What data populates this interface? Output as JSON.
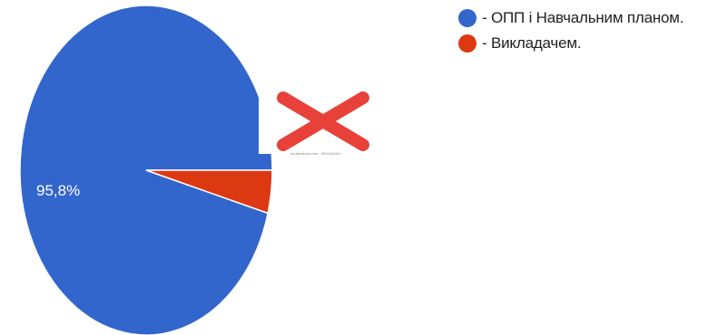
{
  "chart_data": {
    "type": "pie",
    "slices": [
      {
        "name": "- ОПП і Навчальним планом.",
        "value": 95.8,
        "color": "#3366cc"
      },
      {
        "name": "- Викладачем.",
        "value": 4.2,
        "color": "#dc3912"
      }
    ],
    "data_labels": [
      "95,8%",
      ""
    ],
    "legend_position": "top-right"
  },
  "overlay": {
    "icon": "red-x-icon",
    "color": "#e8413a",
    "stock_text": "shutterstock.com · 2094424411"
  }
}
